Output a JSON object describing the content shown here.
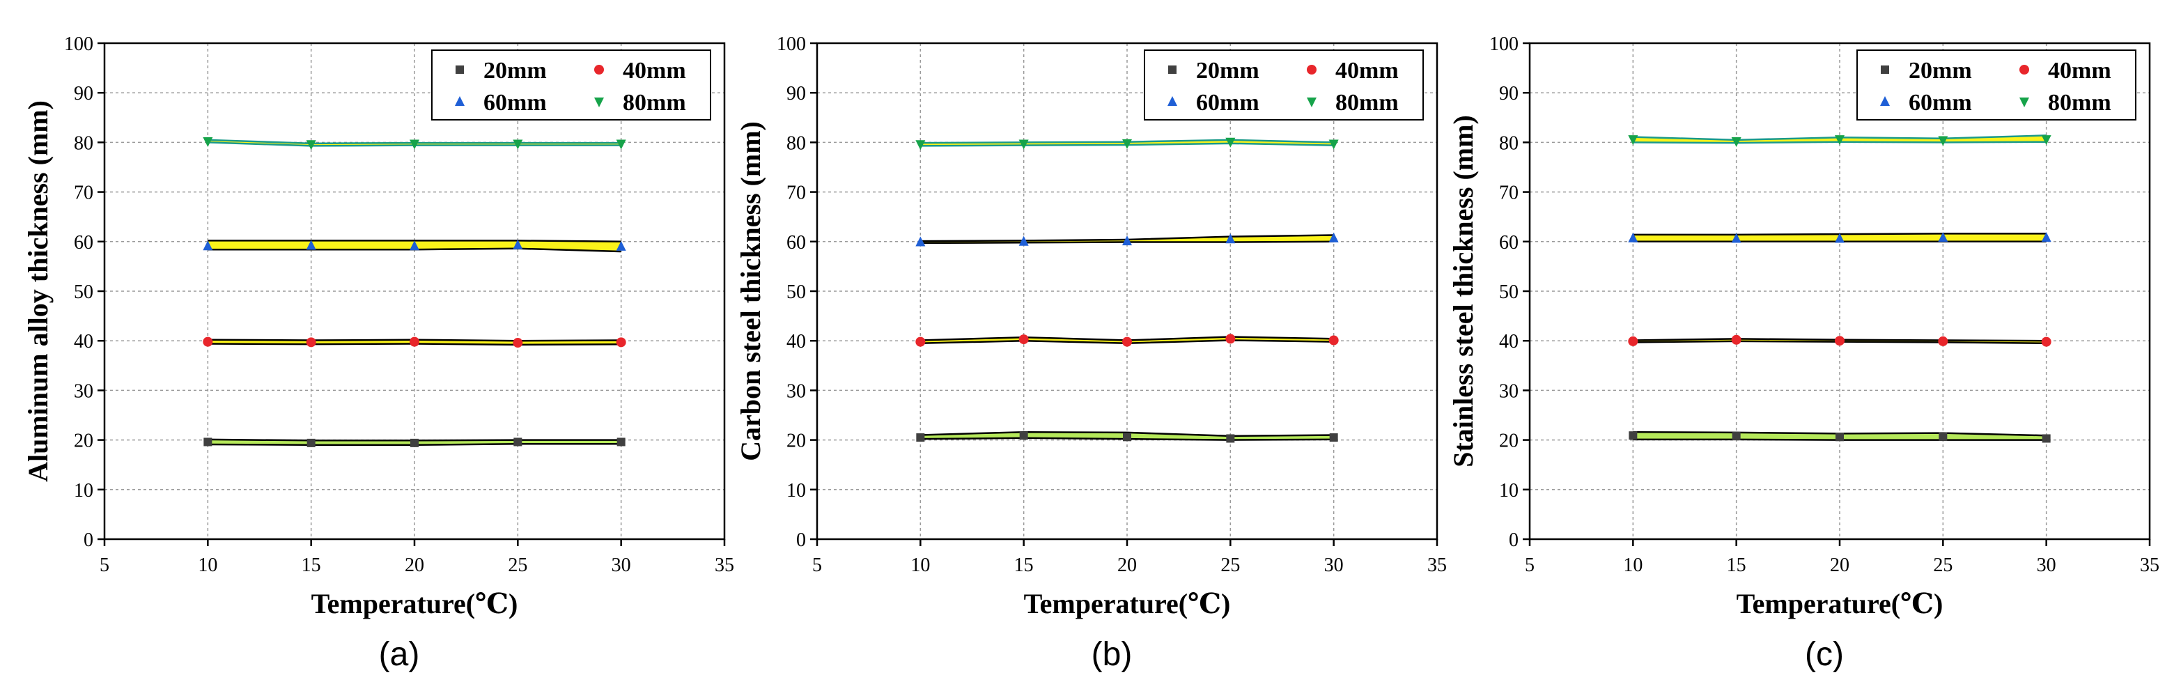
{
  "colors": {
    "s20": "#404040",
    "s40": "#e8262b",
    "s60": "#1f5fd6",
    "s80": "#16a34a",
    "band_yellow": "#fbf31a",
    "band_green": "#b5e85a",
    "band_line": "#000000",
    "band_line_80": "#1a9a8a"
  },
  "chart_data": [
    {
      "type": "scatter",
      "panel_label": "(a)",
      "xlabel": "Temperature(℃)",
      "ylabel": "Aluminum alloy thickness (mm)",
      "xlim": [
        5,
        35
      ],
      "ylim": [
        0,
        100
      ],
      "xticks": [
        5,
        10,
        15,
        20,
        25,
        30,
        35
      ],
      "yticks": [
        0,
        10,
        20,
        30,
        40,
        50,
        60,
        70,
        80,
        90,
        100
      ],
      "grid": true,
      "legend": {
        "placement": "top-right",
        "entries": [
          "20mm",
          "40mm",
          "60mm",
          "80mm"
        ]
      },
      "x": [
        10,
        15,
        20,
        25,
        30
      ],
      "series": [
        {
          "name": "20mm",
          "marker": "square",
          "values": [
            19.6,
            19.4,
            19.4,
            19.6,
            19.6
          ],
          "band": [
            [
              19.1,
              20.1
            ],
            [
              19.0,
              19.9
            ],
            [
              19.0,
              19.9
            ],
            [
              19.2,
              20.0
            ],
            [
              19.2,
              20.0
            ]
          ],
          "band_color": "band_green"
        },
        {
          "name": "40mm",
          "marker": "circle",
          "values": [
            39.8,
            39.7,
            39.8,
            39.6,
            39.7
          ],
          "band": [
            [
              39.4,
              40.2
            ],
            [
              39.3,
              40.1
            ],
            [
              39.4,
              40.2
            ],
            [
              39.2,
              40.0
            ],
            [
              39.3,
              40.1
            ]
          ],
          "band_color": "band_yellow"
        },
        {
          "name": "60mm",
          "marker": "triangle",
          "values": [
            59.1,
            59.2,
            59.1,
            59.3,
            59.0
          ],
          "band": [
            [
              58.4,
              60.2
            ],
            [
              58.4,
              60.2
            ],
            [
              58.4,
              60.2
            ],
            [
              58.6,
              60.2
            ],
            [
              58.0,
              60.0
            ]
          ],
          "band_color": "band_yellow"
        },
        {
          "name": "80mm",
          "marker": "triangle-down",
          "values": [
            80.2,
            79.6,
            79.7,
            79.7,
            79.7
          ],
          "band": [
            [
              80.0,
              80.5
            ],
            [
              79.3,
              79.8
            ],
            [
              79.4,
              79.9
            ],
            [
              79.4,
              79.9
            ],
            [
              79.4,
              79.9
            ]
          ],
          "band_color": "band_yellow"
        }
      ]
    },
    {
      "type": "scatter",
      "panel_label": "(b)",
      "xlabel": "Temperature(℃)",
      "ylabel": "Carbon steel thickness (mm)",
      "xlim": [
        5,
        35
      ],
      "ylim": [
        0,
        100
      ],
      "xticks": [
        5,
        10,
        15,
        20,
        25,
        30,
        35
      ],
      "yticks": [
        0,
        10,
        20,
        30,
        40,
        50,
        60,
        70,
        80,
        90,
        100
      ],
      "grid": true,
      "legend": {
        "placement": "top-right",
        "entries": [
          "20mm",
          "40mm",
          "60mm",
          "80mm"
        ]
      },
      "x": [
        10,
        15,
        20,
        25,
        30
      ],
      "series": [
        {
          "name": "20mm",
          "marker": "square",
          "values": [
            20.5,
            20.9,
            20.6,
            20.3,
            20.5
          ],
          "band": [
            [
              20.2,
              21.0
            ],
            [
              20.4,
              21.6
            ],
            [
              20.2,
              21.5
            ],
            [
              20.0,
              20.8
            ],
            [
              20.1,
              21.0
            ]
          ],
          "band_color": "band_green"
        },
        {
          "name": "40mm",
          "marker": "circle",
          "values": [
            39.8,
            40.3,
            39.8,
            40.4,
            40.1
          ],
          "band": [
            [
              39.5,
              40.1
            ],
            [
              40.0,
              40.7
            ],
            [
              39.5,
              40.1
            ],
            [
              40.1,
              40.8
            ],
            [
              39.8,
              40.4
            ]
          ],
          "band_color": "band_yellow"
        },
        {
          "name": "60mm",
          "marker": "triangle",
          "values": [
            59.9,
            60.0,
            60.1,
            60.5,
            60.7
          ],
          "band": [
            [
              59.7,
              60.1
            ],
            [
              59.8,
              60.2
            ],
            [
              59.9,
              60.4
            ],
            [
              59.9,
              61.0
            ],
            [
              60.0,
              61.3
            ]
          ],
          "band_color": "band_yellow"
        },
        {
          "name": "80mm",
          "marker": "triangle-down",
          "values": [
            79.6,
            79.7,
            79.8,
            80.1,
            79.7
          ],
          "band": [
            [
              79.3,
              79.9
            ],
            [
              79.4,
              80.0
            ],
            [
              79.5,
              80.1
            ],
            [
              79.8,
              80.5
            ],
            [
              79.4,
              80.0
            ]
          ],
          "band_color": "band_yellow"
        }
      ]
    },
    {
      "type": "scatter",
      "panel_label": "(c)",
      "xlabel": "Temperature(℃)",
      "ylabel": "Stainless steel thickness (mm)",
      "xlim": [
        5,
        35
      ],
      "ylim": [
        0,
        100
      ],
      "xticks": [
        5,
        10,
        15,
        20,
        25,
        30,
        35
      ],
      "yticks": [
        0,
        10,
        20,
        30,
        40,
        50,
        60,
        70,
        80,
        90,
        100
      ],
      "grid": true,
      "legend": {
        "placement": "top-right",
        "entries": [
          "20mm",
          "40mm",
          "60mm",
          "80mm"
        ]
      },
      "x": [
        10,
        15,
        20,
        25,
        30
      ],
      "series": [
        {
          "name": "20mm",
          "marker": "square",
          "values": [
            20.9,
            20.8,
            20.6,
            20.7,
            20.3
          ],
          "band": [
            [
              20.1,
              21.6
            ],
            [
              20.1,
              21.5
            ],
            [
              20.0,
              21.3
            ],
            [
              20.0,
              21.4
            ],
            [
              20.0,
              20.9
            ]
          ],
          "band_color": "band_green"
        },
        {
          "name": "40mm",
          "marker": "circle",
          "values": [
            39.9,
            40.2,
            40.0,
            39.9,
            39.8
          ],
          "band": [
            [
              39.7,
              40.1
            ],
            [
              39.9,
              40.4
            ],
            [
              39.8,
              40.2
            ],
            [
              39.7,
              40.1
            ],
            [
              39.5,
              40.0
            ]
          ],
          "band_color": "band_yellow"
        },
        {
          "name": "60mm",
          "marker": "triangle",
          "values": [
            60.7,
            60.6,
            60.6,
            60.8,
            60.8
          ],
          "band": [
            [
              60.0,
              61.4
            ],
            [
              60.0,
              61.4
            ],
            [
              60.0,
              61.5
            ],
            [
              60.0,
              61.6
            ],
            [
              60.0,
              61.6
            ]
          ],
          "band_color": "band_yellow"
        },
        {
          "name": "80mm",
          "marker": "triangle-down",
          "values": [
            80.6,
            80.2,
            80.6,
            80.4,
            80.6
          ],
          "band": [
            [
              80.0,
              81.1
            ],
            [
              79.9,
              80.5
            ],
            [
              80.1,
              81.0
            ],
            [
              80.0,
              80.8
            ],
            [
              80.1,
              81.4
            ]
          ],
          "band_color": "band_yellow"
        }
      ]
    }
  ]
}
